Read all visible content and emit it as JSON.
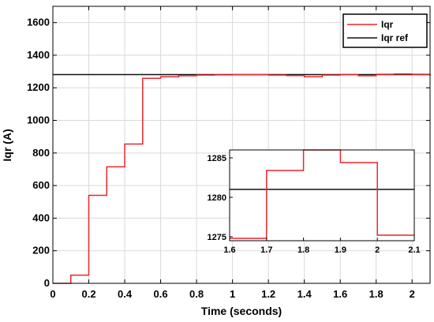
{
  "colors": {
    "iqr": "#e8262b",
    "iqr_ref": "#111111",
    "grid": "#d9d9d9",
    "axis": "#000000",
    "background": "#ffffff"
  },
  "chart_data": [
    {
      "id": "main",
      "type": "line",
      "title": "",
      "xlabel": "Time (seconds)",
      "ylabel": "Iqr (A)",
      "xlim": [
        0,
        2.1
      ],
      "ylim": [
        0,
        1700
      ],
      "x_ticks": [
        0,
        0.2,
        0.4,
        0.6,
        0.8,
        1,
        1.2,
        1.4,
        1.6,
        1.8,
        2
      ],
      "x_tick_labels": [
        "0",
        "0.2",
        "0.4",
        "0.6",
        "0.8",
        "1",
        "1.2",
        "1.4",
        "1.6",
        "1.8",
        "2"
      ],
      "y_ticks": [
        0,
        200,
        400,
        600,
        800,
        1000,
        1200,
        1400,
        1600
      ],
      "y_tick_labels": [
        "0",
        "200",
        "400",
        "600",
        "800",
        "1000",
        "1200",
        "1400",
        "1600"
      ],
      "grid": true,
      "legend": "top-right",
      "series": [
        {
          "name": "Iqr",
          "color": "#e8262b",
          "step": true,
          "x": [
            0,
            0.1,
            0.2,
            0.3,
            0.4,
            0.5,
            0.6,
            0.7,
            0.8,
            0.9,
            1.0,
            1.1,
            1.2,
            1.3,
            1.4,
            1.5,
            1.6,
            1.7,
            1.8,
            1.9,
            2.0,
            2.1
          ],
          "y": [
            0,
            50,
            540,
            715,
            855,
            1258,
            1268,
            1274,
            1278,
            1279,
            1280,
            1280,
            1278,
            1275,
            1268,
            1278,
            1281,
            1274,
            1283,
            1285,
            1283,
            1275
          ]
        },
        {
          "name": "Iqr ref",
          "color": "#111111",
          "step": false,
          "x": [
            0,
            2.1
          ],
          "y": [
            1281,
            1281
          ]
        }
      ]
    },
    {
      "id": "inset",
      "type": "line",
      "title": "",
      "xlabel": "",
      "ylabel": "",
      "xlim": [
        1.6,
        2.1
      ],
      "ylim": [
        1274.5,
        1286
      ],
      "x_ticks": [
        1.6,
        1.7,
        1.8,
        1.9,
        2,
        2.1
      ],
      "x_tick_labels": [
        "1.6",
        "1.7",
        "1.8",
        "1.9",
        "2",
        "2.1"
      ],
      "y_ticks": [
        1275,
        1280,
        1285
      ],
      "y_tick_labels": [
        "1275",
        "1280",
        "1285"
      ],
      "grid": false,
      "series": [
        {
          "name": "Iqr",
          "color": "#e8262b",
          "step": true,
          "x": [
            1.6,
            1.7,
            1.8,
            1.9,
            2.0,
            2.1
          ],
          "y": [
            1274.8,
            1283.4,
            1286,
            1284.4,
            1275.2,
            1275.2
          ]
        },
        {
          "name": "Iqr ref",
          "color": "#111111",
          "step": false,
          "x": [
            1.6,
            2.1
          ],
          "y": [
            1281,
            1281
          ]
        }
      ]
    }
  ]
}
